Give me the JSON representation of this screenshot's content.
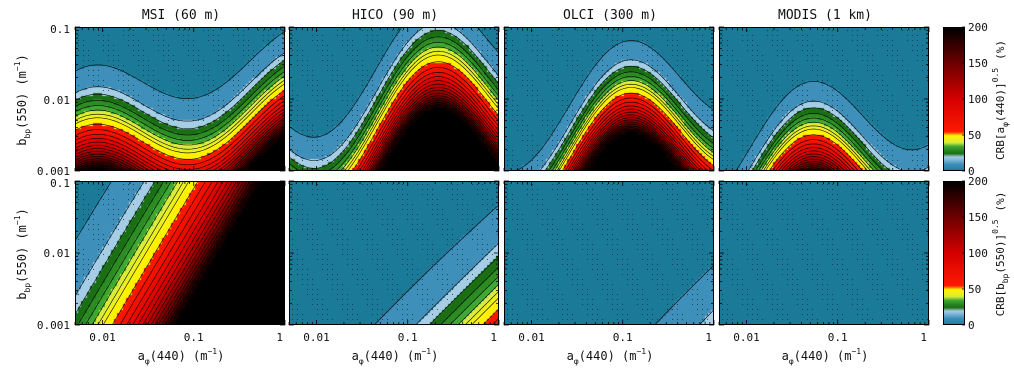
{
  "chart_data": {
    "type": "heatmap",
    "columns": [
      "MSI (60 m)",
      "HICO (90 m)",
      "OLCI (300 m)",
      "MODIS (1 km)"
    ],
    "x_axis": {
      "quantity": "a",
      "subscript": "φ",
      "rest": "(440)  (m",
      "exp": "−1",
      "close": ")",
      "ticks": [
        "0.01",
        "0.1",
        "1"
      ],
      "tick_values": [
        0.01,
        0.1,
        1
      ],
      "range": [
        0.005,
        1
      ],
      "scale": "log"
    },
    "y_axis": {
      "quantity": "b",
      "subscript": "bp",
      "rest": "(550)  (m",
      "exp": "−1",
      "close": ")",
      "ticks": [
        "0.1",
        "0.01",
        "0.001"
      ],
      "tick_values": [
        0.1,
        0.01,
        0.001
      ],
      "range": [
        0.001,
        0.1
      ],
      "scale": "log"
    },
    "colorbars": [
      {
        "label_pre": "CRB[a",
        "label_sub": "φ",
        "label_post": "(440)]",
        "label_sup": "0.5",
        "label_unit": "(%)",
        "ticks": [
          "200",
          "150",
          "100",
          "50",
          "0"
        ],
        "tick_values": [
          200,
          150,
          100,
          50,
          0
        ],
        "range": [
          0,
          200
        ]
      },
      {
        "label_pre": "CRB[b",
        "label_sub": "bp",
        "label_post": "(550)]",
        "label_sup": "0.5",
        "label_unit": "(%)",
        "ticks": [
          "200",
          "150",
          "100",
          "50",
          "0"
        ],
        "tick_values": [
          200,
          150,
          100,
          50,
          0
        ],
        "range": [
          0,
          200
        ]
      }
    ],
    "colormap": [
      {
        "v": 0,
        "c": "#1a7a98"
      },
      {
        "v": 10,
        "c": "#3f8fbb"
      },
      {
        "v": 20,
        "c": "#a6cde6"
      },
      {
        "v": 25,
        "c": "#1a6e14"
      },
      {
        "v": 35,
        "c": "#3ea832"
      },
      {
        "v": 40,
        "c": "#d9ec3b"
      },
      {
        "v": 50,
        "c": "#fff200"
      },
      {
        "v": 55,
        "c": "#ff1a00"
      },
      {
        "v": 100,
        "c": "#d60000"
      },
      {
        "v": 150,
        "c": "#6e0000"
      },
      {
        "v": 200,
        "c": "#000000"
      }
    ],
    "contour_levels": [
      10,
      20,
      25,
      30,
      35,
      40,
      45,
      50,
      60,
      70,
      80,
      90,
      100,
      110,
      120,
      130,
      140,
      150,
      160,
      170,
      180,
      190,
      200
    ],
    "rows": [
      "CRB[a_phi(440)]^0.5",
      "CRB[b_bp(550)]^0.5"
    ],
    "panel_params": [
      [
        {
          "A": 40,
          "T": 0.58,
          "K": 4.0,
          "E": 1.2,
          "w": 0.45,
          "p": 0.8,
          "a": 0.65,
          "F": 0
        },
        {
          "A": 16,
          "T": 1.05,
          "K": 3.8,
          "E": 2.2,
          "w": 0.35,
          "p": 0.4,
          "a": 0.5,
          "F": 0
        },
        {
          "A": 7,
          "T": 1.0,
          "K": 4.5,
          "E": 2.7,
          "w": 0.5,
          "p": 0.3,
          "a": 0.45,
          "F": 0
        },
        {
          "A": 3,
          "T": 0.95,
          "K": 4.5,
          "E": 3.2,
          "w": 1.0,
          "p": 0.15,
          "a": 0.3,
          "F": 0
        }
      ],
      [
        {
          "A": 100,
          "T": 0.3,
          "K": 2.6,
          "E": 1.0,
          "w": 0.0,
          "p": 0.0,
          "a": 0.45,
          "F": 0
        },
        {
          "A": 20,
          "T": 0.62,
          "K": 2.2,
          "E": 1.0,
          "w": 0.0,
          "p": 0.0,
          "a": 0.75,
          "F": 0
        },
        {
          "A": 8,
          "T": 0.7,
          "K": 2.2,
          "E": 1.0,
          "w": 0.0,
          "p": 0.0,
          "a": 0.7,
          "F": 0
        },
        {
          "A": 3,
          "T": 0.8,
          "K": 2.2,
          "E": 1.0,
          "w": 0.0,
          "p": 0.0,
          "a": 0.6,
          "F": 0
        }
      ]
    ],
    "grid": false,
    "dotted_overlay": true
  }
}
